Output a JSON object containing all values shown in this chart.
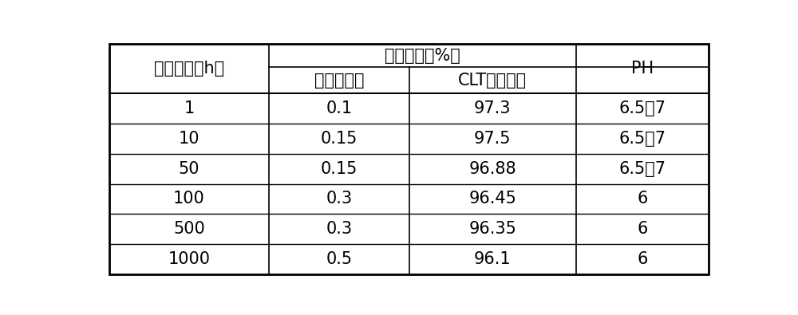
{
  "col_headers_row1_left": "取样时间（h）",
  "col_headers_row1_mid": "取样结果（%）",
  "col_headers_row1_right": "PH",
  "col_headers_row2_col1": "脱氯物比重",
  "col_headers_row2_col2": "CLT酸转化率",
  "rows": [
    [
      "1",
      "0.1",
      "97.3",
      "6.5～7"
    ],
    [
      "10",
      "0.15",
      "97.5",
      "6.5～7"
    ],
    [
      "50",
      "0.15",
      "96.88",
      "6.5～7"
    ],
    [
      "100",
      "0.3",
      "96.45",
      "6"
    ],
    [
      "500",
      "0.3",
      "96.35",
      "6"
    ],
    [
      "1000",
      "0.5",
      "96.1",
      "6"
    ]
  ],
  "bg_color": "#ffffff",
  "line_color": "#000000",
  "text_color": "#000000",
  "header_fontsize": 15,
  "cell_fontsize": 15,
  "figsize": [
    10.0,
    3.95
  ],
  "dpi": 100
}
